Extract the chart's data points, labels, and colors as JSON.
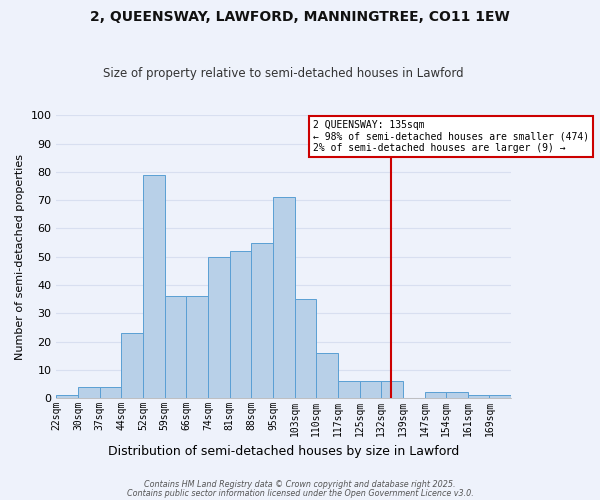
{
  "title": "2, QUEENSWAY, LAWFORD, MANNINGTREE, CO11 1EW",
  "subtitle": "Size of property relative to semi-detached houses in Lawford",
  "xlabel": "Distribution of semi-detached houses by size in Lawford",
  "ylabel": "Number of semi-detached properties",
  "bar_labels": [
    "22sqm",
    "30sqm",
    "37sqm",
    "44sqm",
    "52sqm",
    "59sqm",
    "66sqm",
    "74sqm",
    "81sqm",
    "88sqm",
    "95sqm",
    "103sqm",
    "110sqm",
    "117sqm",
    "125sqm",
    "132sqm",
    "139sqm",
    "147sqm",
    "154sqm",
    "161sqm",
    "169sqm"
  ],
  "bar_values": [
    1,
    4,
    4,
    23,
    79,
    36,
    36,
    50,
    52,
    55,
    71,
    35,
    16,
    6,
    6,
    6,
    0,
    2,
    2,
    1,
    1
  ],
  "bar_color": "#b8d0e8",
  "bar_edge_color": "#5a9fd4",
  "background_color": "#eef2fb",
  "grid_color": "#d8dff0",
  "vline_color": "#cc0000",
  "annotation_title": "2 QUEENSWAY: 135sqm",
  "annotation_line1": "← 98% of semi-detached houses are smaller (474)",
  "annotation_line2": "2% of semi-detached houses are larger (9) →",
  "annotation_box_color": "#cc0000",
  "annotation_bg": "#ffffff",
  "ylim": [
    0,
    100
  ],
  "yticks": [
    0,
    10,
    20,
    30,
    40,
    50,
    60,
    70,
    80,
    90,
    100
  ],
  "footer1": "Contains HM Land Registry data © Crown copyright and database right 2025.",
  "footer2": "Contains public sector information licensed under the Open Government Licence v3.0.",
  "bin_edges": [
    22,
    30,
    37,
    44,
    52,
    59,
    66,
    74,
    81,
    88,
    95,
    103,
    110,
    117,
    125,
    132,
    139,
    147,
    154,
    161,
    169,
    176
  ],
  "vline_bin_idx": 15.43
}
